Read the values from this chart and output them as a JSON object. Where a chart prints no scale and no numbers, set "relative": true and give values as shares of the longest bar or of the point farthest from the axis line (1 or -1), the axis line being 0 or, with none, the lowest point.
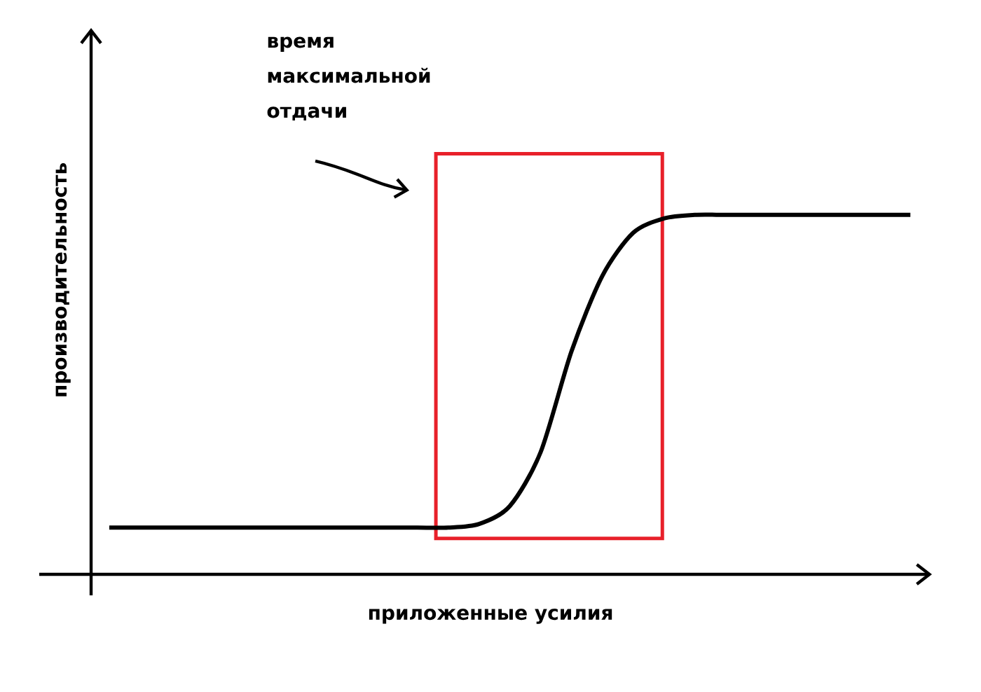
{
  "chart_data": {
    "type": "line",
    "relative": true,
    "xlabel": "приложенные усилия",
    "ylabel": "производительность",
    "annotations": [
      "время максимальной отдачи"
    ],
    "categories": [
      null,
      null,
      null,
      null,
      null,
      null,
      null,
      null,
      null,
      null,
      null,
      null,
      null,
      null,
      null,
      null,
      null,
      null,
      null,
      null,
      null,
      null,
      null,
      null,
      null,
      null,
      null
    ],
    "series": [
      {
        "color": "#000000",
        "values": [
          0.13,
          0.13,
          0.13,
          0.13,
          0.13,
          0.13,
          0.13,
          0.13,
          0.13,
          0.13,
          0.13,
          0.13,
          0.14,
          0.19,
          0.34,
          0.62,
          0.83,
          0.95,
          0.99,
          1,
          1,
          1,
          1,
          1,
          1,
          1,
          1
        ]
      }
    ]
  }
}
